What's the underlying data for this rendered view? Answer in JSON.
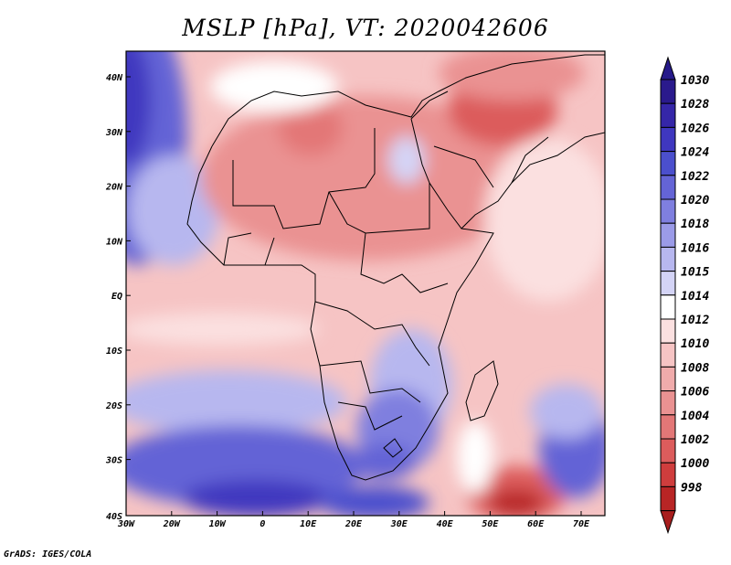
{
  "title": "MSLP [hPa], VT: 2020042606",
  "credit": "GrADS: IGES/COLA",
  "axes": {
    "lat_labels": [
      "40N",
      "30N",
      "20N",
      "10N",
      "EQ",
      "10S",
      "20S",
      "30S",
      "40S"
    ],
    "lon_labels": [
      "30W",
      "20W",
      "10W",
      "0",
      "10E",
      "20E",
      "30E",
      "40E",
      "50E",
      "60E",
      "70E"
    ]
  },
  "colorbar": {
    "levels": [
      {
        "label": "1030",
        "color": "#2a1a8c"
      },
      {
        "label": "1028",
        "color": "#3526a8"
      },
      {
        "label": "1026",
        "color": "#3f37bf"
      },
      {
        "label": "1024",
        "color": "#4b4fcd"
      },
      {
        "label": "1022",
        "color": "#6464d6"
      },
      {
        "label": "1020",
        "color": "#7f7fdf"
      },
      {
        "label": "1018",
        "color": "#9b9be8"
      },
      {
        "label": "1016",
        "color": "#b7b7ef"
      },
      {
        "label": "1015",
        "color": "#d4d4f6"
      },
      {
        "label": "1014",
        "color": "#ffffff"
      },
      {
        "label": "1012",
        "color": "#fbe0e0"
      },
      {
        "label": "1010",
        "color": "#f6c4c4"
      },
      {
        "label": "1008",
        "color": "#f0abab"
      },
      {
        "label": "1006",
        "color": "#ea9292"
      },
      {
        "label": "1004",
        "color": "#e37777"
      },
      {
        "label": "1002",
        "color": "#dc5c5c"
      },
      {
        "label": "1000",
        "color": "#cf3d3d"
      },
      {
        "label": "998",
        "color": "#b82525"
      }
    ]
  },
  "colors": {
    "top_arrow": "#261a8a",
    "bottom_arrow": "#a81e1e"
  }
}
